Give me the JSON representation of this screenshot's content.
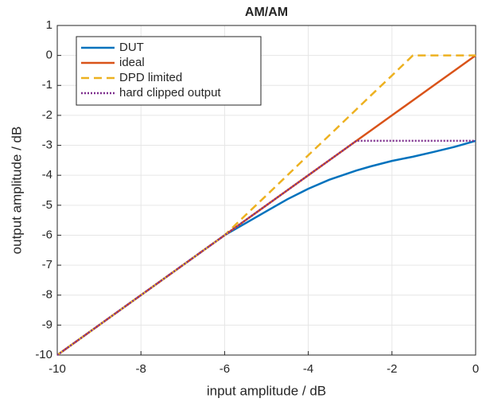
{
  "chart_data": {
    "type": "line",
    "title": "AM/AM",
    "x_label": "input amplitude / dB",
    "y_label": "output amplitude / dB",
    "x": [
      -10,
      -9,
      -8,
      -7,
      -6,
      -5.5,
      -5,
      -4.5,
      -4,
      -3.5,
      -2.85,
      -2.5,
      -2,
      -1.5,
      -1,
      -0.5,
      0
    ],
    "series": [
      {
        "name": "DUT",
        "color": "#0072bd",
        "style": "solid",
        "values": [
          -10,
          -9,
          -8,
          -7,
          -6,
          -5.6,
          -5.2,
          -4.8,
          -4.45,
          -4.15,
          -3.84,
          -3.7,
          -3.52,
          -3.38,
          -3.22,
          -3.05,
          -2.85
        ]
      },
      {
        "name": "ideal",
        "color": "#d95319",
        "style": "solid",
        "values": [
          -10,
          -9,
          -8,
          -7,
          -6,
          -5.5,
          -5,
          -4.5,
          -4,
          -3.5,
          -2.85,
          -2.5,
          -2,
          -1.5,
          -1,
          -0.5,
          0
        ]
      },
      {
        "name": "DPD limited",
        "color": "#edb120",
        "style": "dashed",
        "values": [
          -10,
          -9,
          -8,
          -7,
          -6,
          -5.33,
          -4.67,
          -4,
          -3.33,
          -2.67,
          -1.8,
          -1.33,
          -0.67,
          0,
          0,
          0,
          0
        ]
      },
      {
        "name": "hard clipped output",
        "color": "#7e2f8e",
        "style": "dotted",
        "values": [
          -10,
          -9,
          -8,
          -7,
          -6,
          -5.5,
          -5,
          -4.5,
          -4,
          -3.5,
          -2.85,
          -2.85,
          -2.85,
          -2.85,
          -2.85,
          -2.85,
          -2.85
        ]
      }
    ],
    "xlim": [
      -10,
      0
    ],
    "xticks": [
      -10,
      -8,
      -6,
      -4,
      -2,
      0
    ],
    "ylim": [
      -10,
      1
    ],
    "yticks": [
      -10,
      -9,
      -8,
      -7,
      -6,
      -5,
      -4,
      -3,
      -2,
      -1,
      0,
      1
    ],
    "grid": true,
    "legend_position": "upper-left"
  }
}
